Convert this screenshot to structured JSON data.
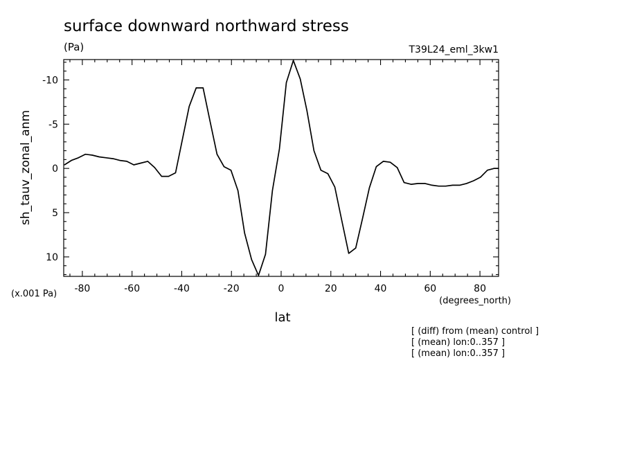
{
  "chart_data": {
    "type": "line",
    "title": "surface downward northward stress",
    "units": "(Pa)",
    "run_label": "T39L24_eml_3kw1",
    "ylabel": "sh_tauv_zonal_anm",
    "xlabel": "lat",
    "x_units": "(degrees_north)",
    "y_scale_note": "(x.001 Pa)",
    "y_inverted": true,
    "xlim": [
      -87.5,
      87.5
    ],
    "ylim": [
      12.2,
      -12.3
    ],
    "x_ticks": [
      -80,
      -60,
      -40,
      -20,
      0,
      20,
      40,
      60,
      80
    ],
    "x_tick_labels": [
      "-80",
      "-60",
      "-40",
      "-20",
      "0",
      "20",
      "40",
      "60",
      "80"
    ],
    "y_ticks": [
      -10,
      -5,
      0,
      5,
      10
    ],
    "y_tick_labels": [
      "-10",
      "-5",
      "0",
      "5",
      "10"
    ],
    "notes": [
      "[ (diff) from (mean) control ]",
      "[ (mean) lon:0..357 ]",
      "[ (mean) lon:0..357 ]"
    ],
    "series": [
      {
        "x": [
          -87.2,
          -84.4,
          -81.6,
          -78.8,
          -76.0,
          -73.2,
          -70.4,
          -67.6,
          -64.9,
          -62.1,
          -59.3,
          -56.5,
          -53.7,
          -50.9,
          -48.1,
          -45.3,
          -42.5,
          -39.8,
          -37.0,
          -34.2,
          -31.4,
          -28.6,
          -25.8,
          -23.0,
          -20.2,
          -17.4,
          -14.7,
          -11.9,
          -9.1,
          -6.3,
          -3.5,
          -0.7,
          2.1,
          4.9,
          7.7,
          10.4,
          13.2,
          16.0,
          18.8,
          21.6,
          24.4,
          27.2,
          30.0,
          32.8,
          35.5,
          38.3,
          41.1,
          43.9,
          46.7,
          49.5,
          52.3,
          55.1,
          57.9,
          60.7,
          63.4,
          66.2,
          69.0,
          71.8,
          74.6,
          77.4,
          80.2,
          83.0,
          85.8,
          87.5
        ],
        "values": [
          -0.4,
          -0.9,
          -1.2,
          -1.6,
          -1.5,
          -1.3,
          -1.2,
          -1.1,
          -0.9,
          -0.8,
          -0.4,
          -0.6,
          -0.8,
          -0.1,
          0.9,
          0.9,
          0.5,
          -3.2,
          -7.0,
          -9.1,
          -9.1,
          -5.3,
          -1.6,
          -0.2,
          0.2,
          2.5,
          7.3,
          10.3,
          12.1,
          9.7,
          2.5,
          -2.2,
          -9.7,
          -12.2,
          -10.1,
          -6.5,
          -2.0,
          0.2,
          0.6,
          2.1,
          5.9,
          9.6,
          9.0,
          5.6,
          2.2,
          -0.2,
          -0.8,
          -0.7,
          -0.1,
          1.6,
          1.8,
          1.7,
          1.7,
          1.9,
          2.0,
          2.0,
          1.9,
          1.9,
          1.7,
          1.4,
          1.0,
          0.2,
          0.0,
          0.0
        ]
      }
    ]
  }
}
